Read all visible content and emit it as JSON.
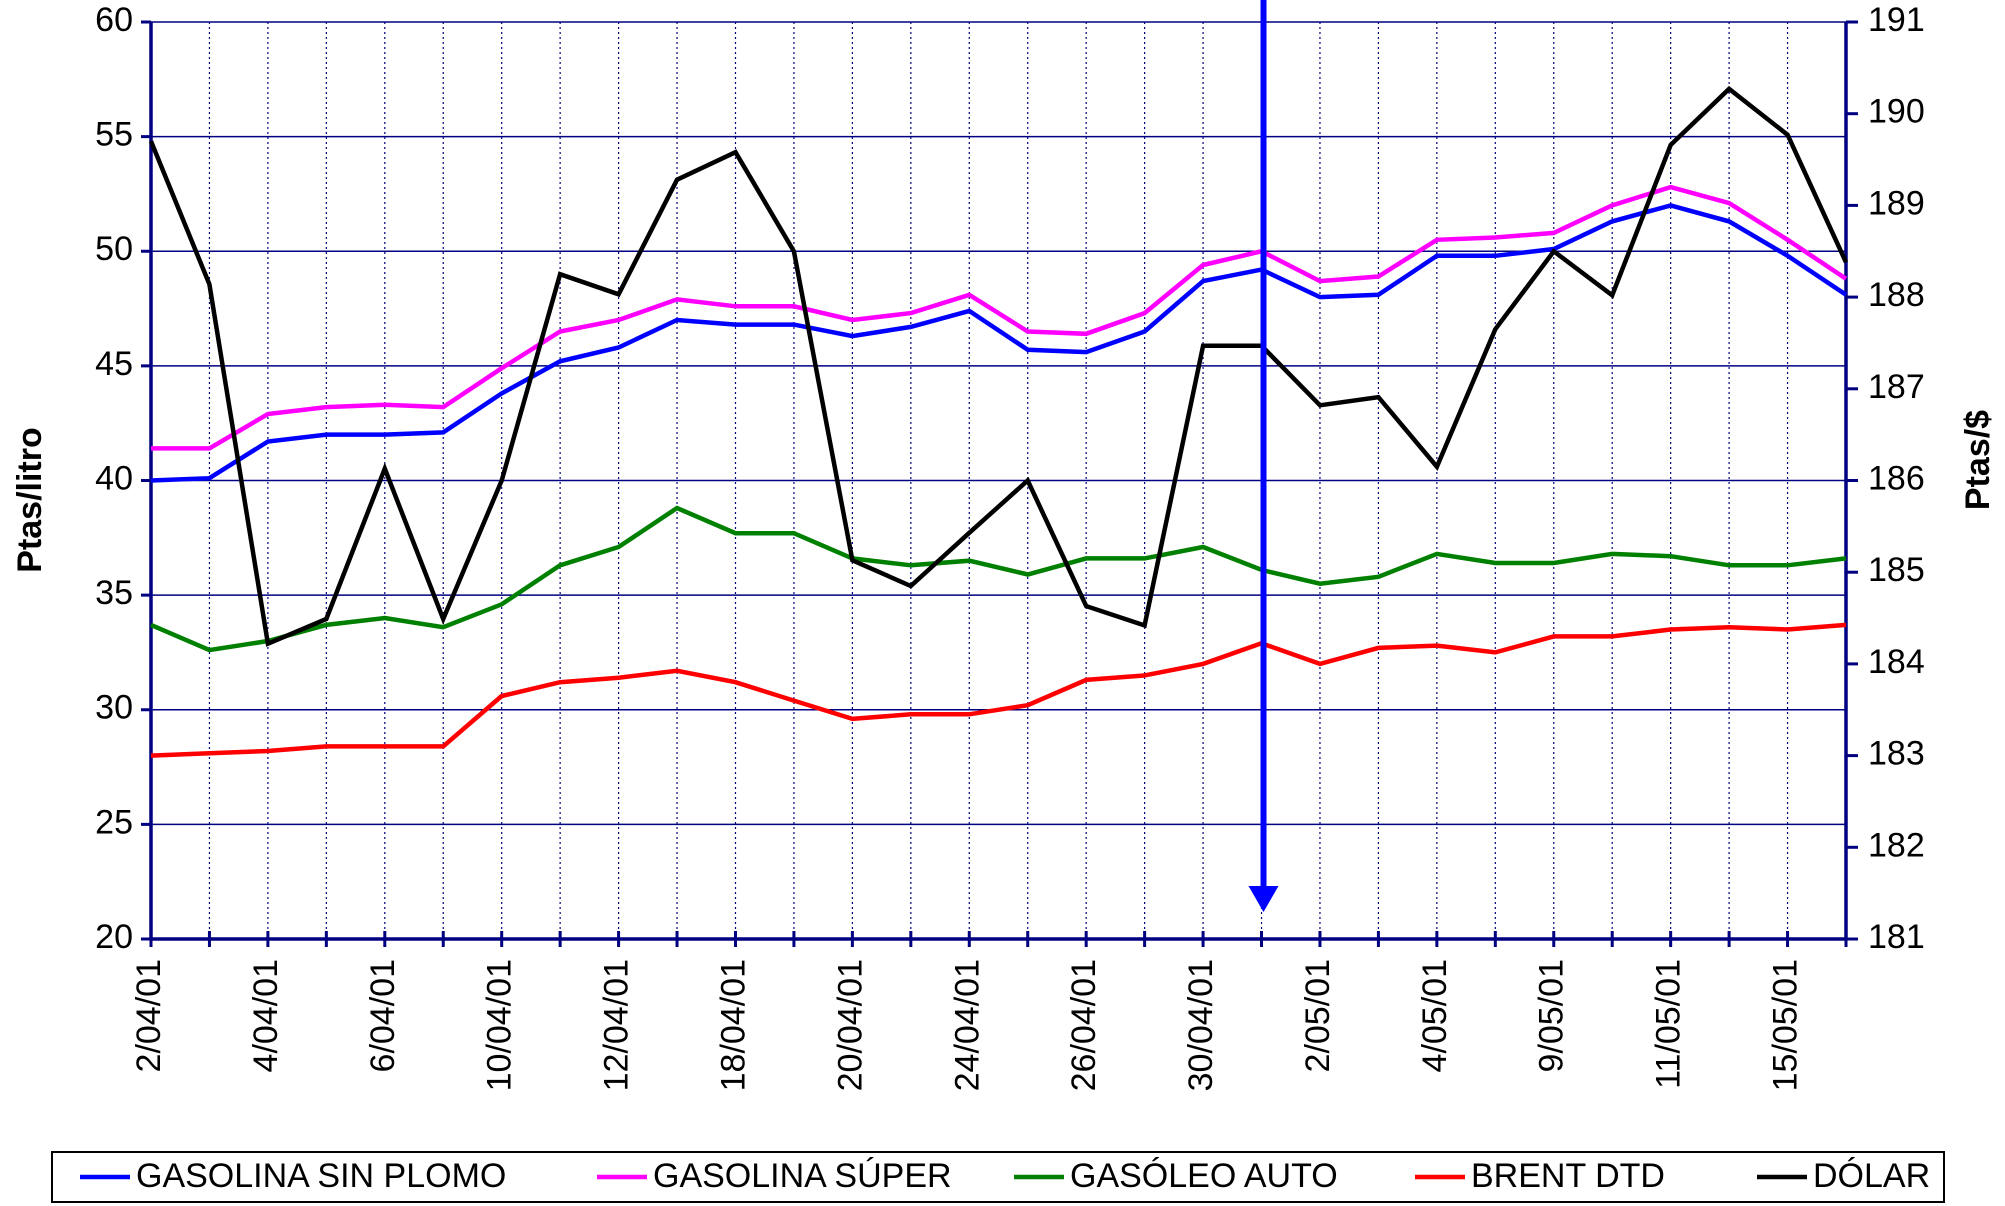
{
  "chart_data": {
    "type": "line",
    "y_label": "Ptas/litro",
    "y2_label": "Ptas/$",
    "categories": [
      "2/04/01",
      null,
      "4/04/01",
      null,
      "6/04/01",
      null,
      "10/04/01",
      null,
      "12/04/01",
      null,
      "18/04/01",
      null,
      "20/04/01",
      null,
      "24/04/01",
      null,
      "26/04/01",
      null,
      "30/04/01",
      null,
      "2/05/01",
      null,
      "4/05/01",
      null,
      "9/05/01",
      null,
      "11/05/01",
      null,
      "15/05/01",
      null
    ],
    "ylim": [
      20,
      60
    ],
    "yticks": [
      20,
      25,
      30,
      35,
      40,
      45,
      50,
      55,
      60
    ],
    "y2lim": [
      181,
      191
    ],
    "y2ticks": [
      181,
      182,
      183,
      184,
      185,
      186,
      187,
      188,
      189,
      190,
      191
    ],
    "grid": true,
    "legend": "bottom",
    "series": [
      {
        "name": "GASOLINA SIN PLOMO",
        "color": "#0000ff",
        "values": [
          40.0,
          40.1,
          41.7,
          42.0,
          42.0,
          42.1,
          43.8,
          45.2,
          45.8,
          47.0,
          46.8,
          46.8,
          46.3,
          46.7,
          47.4,
          45.7,
          45.6,
          46.5,
          48.7,
          49.2,
          48.0,
          48.1,
          49.8,
          49.8,
          50.1,
          51.3,
          52.0,
          51.3,
          49.8,
          48.1
        ]
      },
      {
        "name": "GASOLINA SÚPER",
        "color": "#ff00ff",
        "values": [
          41.4,
          41.4,
          42.9,
          43.2,
          43.3,
          43.2,
          44.9,
          46.5,
          47.0,
          47.9,
          47.6,
          47.6,
          47.0,
          47.3,
          48.1,
          46.5,
          46.4,
          47.3,
          49.4,
          50.0,
          48.7,
          48.9,
          50.5,
          50.6,
          50.8,
          52.0,
          52.8,
          52.1,
          50.5,
          48.8
        ]
      },
      {
        "name": "GASÓLEO AUTO",
        "color": "#008000",
        "values": [
          33.7,
          32.6,
          33.0,
          33.7,
          34.0,
          33.6,
          34.6,
          36.3,
          37.1,
          38.8,
          37.7,
          37.7,
          36.6,
          36.3,
          36.5,
          35.9,
          36.6,
          36.6,
          37.1,
          36.1,
          35.5,
          35.8,
          36.8,
          36.4,
          36.4,
          36.8,
          36.7,
          36.3,
          36.3,
          36.6
        ]
      },
      {
        "name": "BRENT DTD",
        "color": "#ff0000",
        "values": [
          28.0,
          28.1,
          28.2,
          28.4,
          28.4,
          28.4,
          30.6,
          31.2,
          31.4,
          31.7,
          31.2,
          30.4,
          29.6,
          29.8,
          29.8,
          30.2,
          31.3,
          31.5,
          32.0,
          32.9,
          32.0,
          32.7,
          32.8,
          32.5,
          33.2,
          33.2,
          33.5,
          33.6,
          33.5,
          33.7
        ]
      },
      {
        "name": "DÓLAR",
        "color": "#000000",
        "axis": "y2",
        "values": [
          189.7,
          188.14,
          184.22,
          184.49,
          186.13,
          184.49,
          186.0,
          188.25,
          188.03,
          189.28,
          189.58,
          188.5,
          185.13,
          184.85,
          185.43,
          186.0,
          184.63,
          184.42,
          187.47,
          187.47,
          186.82,
          186.91,
          186.15,
          187.65,
          188.5,
          188.02,
          189.66,
          190.27,
          189.77,
          188.38
        ]
      }
    ]
  }
}
